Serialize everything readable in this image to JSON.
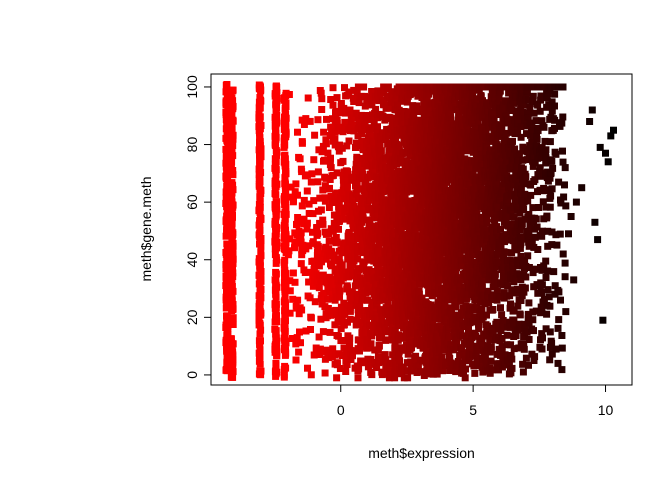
{
  "chart_data": {
    "type": "scatter",
    "title": "",
    "xlabel": "meth$expression",
    "ylabel": "meth$gene.meth",
    "xlim": [
      -4.9,
      11.0
    ],
    "ylim": [
      -3.5,
      104.5
    ],
    "x_ticks": [
      0,
      5,
      10
    ],
    "y_ticks": [
      0,
      20,
      40,
      60,
      80,
      100
    ],
    "x_tick_labels": [
      "0",
      "5",
      "10"
    ],
    "y_tick_labels": [
      "0",
      "20",
      "40",
      "60",
      "80",
      "100"
    ],
    "grid": false,
    "legend": "none",
    "marker": "square",
    "color_scale": {
      "description": "point color = expression value, red (low) to black (high)",
      "low_color": "#ff0000",
      "high_color": "#000000",
      "domain": [
        -2,
        10.3
      ]
    },
    "value_clusters": [
      {
        "expression": -4.3,
        "gene_meth_range": [
          -1,
          101
        ],
        "note": "dense vertical stripe"
      },
      {
        "expression": -4.1,
        "gene_meth_range": [
          -1,
          99
        ],
        "note": "dense vertical stripe"
      },
      {
        "expression": -3.05,
        "gene_meth_range": [
          -1,
          101
        ],
        "note": "vertical stripe"
      },
      {
        "expression": -2.45,
        "gene_meth_range": [
          -1,
          101
        ],
        "note": "vertical stripe"
      },
      {
        "expression": -2.1,
        "gene_meth_range": [
          -1,
          100
        ],
        "note": "vertical stripe"
      }
    ],
    "continuous_bulk": {
      "expression_range": [
        -2,
        8.5
      ],
      "gene_meth_range": [
        -1,
        100
      ],
      "note": "dense cloud filling the plot; mass shifts toward higher gene.meth as expression increases"
    },
    "sparse_outliers": [
      {
        "x": 9.9,
        "y": 19
      },
      {
        "x": 9.7,
        "y": 47
      },
      {
        "x": 9.6,
        "y": 53
      },
      {
        "x": 10.1,
        "y": 74
      },
      {
        "x": 10.3,
        "y": 85
      },
      {
        "x": 10.2,
        "y": 83
      },
      {
        "x": 9.5,
        "y": 92
      },
      {
        "x": 9.4,
        "y": 88
      },
      {
        "x": 9.8,
        "y": 79
      },
      {
        "x": 10.0,
        "y": 77
      },
      {
        "x": 9.1,
        "y": 65
      },
      {
        "x": 8.9,
        "y": 60
      },
      {
        "x": 8.7,
        "y": 55
      },
      {
        "x": 8.6,
        "y": 49
      },
      {
        "x": 8.4,
        "y": 42
      },
      {
        "x": 8.8,
        "y": 33
      },
      {
        "x": 8.3,
        "y": 26
      },
      {
        "x": 8.5,
        "y": 22
      },
      {
        "x": 8.1,
        "y": 31
      },
      {
        "x": 7.6,
        "y": 9
      },
      {
        "x": 7.3,
        "y": 5
      },
      {
        "x": 6.9,
        "y": 1
      }
    ]
  }
}
